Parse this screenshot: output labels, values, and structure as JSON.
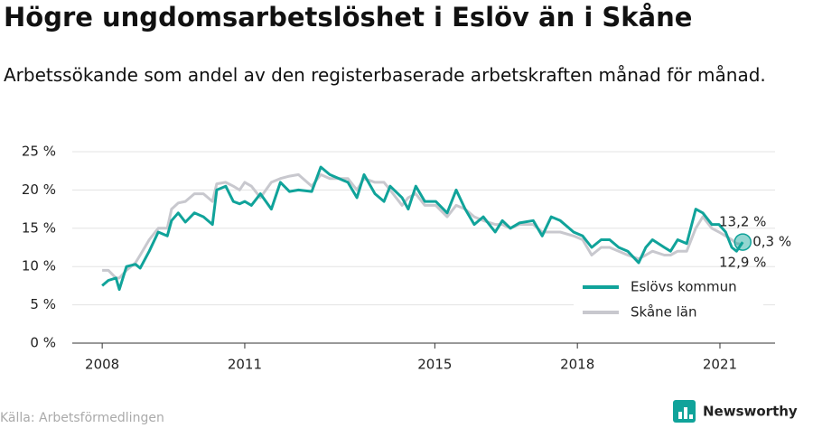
{
  "chart_data": {
    "type": "line",
    "title": "Högre ungdomsarbetslöshet i Eslöv än i Skåne",
    "subtitle": "Arbetssökande som andel av den registerbaserade arbetskraften månad för månad.",
    "source": "Källa: Arbetsförmedlingen",
    "brand": "Newsworthy",
    "x": [
      2008.0,
      2008.13,
      2008.29,
      2008.36,
      2008.51,
      2008.7,
      2008.8,
      2008.99,
      2009.18,
      2009.37,
      2009.46,
      2009.6,
      2009.75,
      2009.94,
      2010.13,
      2010.32,
      2010.41,
      2010.6,
      2010.76,
      2010.89,
      2011.0,
      2011.14,
      2011.33,
      2011.56,
      2011.75,
      2011.94,
      2012.13,
      2012.41,
      2012.6,
      2012.79,
      2013.17,
      2013.36,
      2013.51,
      2013.74,
      2013.93,
      2014.06,
      2014.31,
      2014.44,
      2014.6,
      2014.79,
      2015.02,
      2015.26,
      2015.45,
      2015.64,
      2015.83,
      2016.02,
      2016.27,
      2016.42,
      2016.59,
      2016.78,
      2017.07,
      2017.26,
      2017.45,
      2017.64,
      2017.92,
      2018.11,
      2018.3,
      2018.5,
      2018.68,
      2018.87,
      2019.06,
      2019.29,
      2019.44,
      2019.58,
      2019.83,
      2019.96,
      2020.11,
      2020.3,
      2020.49,
      2020.64,
      2020.83,
      2020.98,
      2021.12,
      2021.25,
      2021.35,
      2021.48
    ],
    "series": [
      {
        "name": "Eslövs kommun",
        "color": "#10a39a",
        "values": [
          7.5,
          8.2,
          8.5,
          7.0,
          10.0,
          10.3,
          9.8,
          12.0,
          14.5,
          14.0,
          16.0,
          17.0,
          15.8,
          17.0,
          16.5,
          15.5,
          20.0,
          20.5,
          18.5,
          18.2,
          18.5,
          18.0,
          19.5,
          17.5,
          21.0,
          19.8,
          20.0,
          19.8,
          23.0,
          22.0,
          21.0,
          19.0,
          22.0,
          19.5,
          18.5,
          20.5,
          19.0,
          17.5,
          20.5,
          18.5,
          18.5,
          17.0,
          20.0,
          17.5,
          15.5,
          16.5,
          14.5,
          16.0,
          15.0,
          15.7,
          16.0,
          14.0,
          16.5,
          16.0,
          14.5,
          14.0,
          12.5,
          13.5,
          13.5,
          12.5,
          12.0,
          10.5,
          12.5,
          13.5,
          12.5,
          12.0,
          13.5,
          13.0,
          17.5,
          17.0,
          15.5,
          15.5,
          14.5,
          12.5,
          12.0,
          13.2
        ]
      },
      {
        "name": "Skåne län",
        "color": "#c8c8ce",
        "values": [
          9.5,
          9.5,
          8.5,
          8.5,
          9.5,
          10.5,
          11.5,
          13.5,
          15.0,
          15.0,
          17.5,
          18.3,
          18.5,
          19.5,
          19.5,
          18.5,
          20.8,
          21.0,
          20.5,
          20.0,
          21.0,
          20.5,
          19.0,
          21.0,
          21.5,
          21.8,
          22.0,
          20.5,
          22.0,
          21.5,
          21.5,
          20.0,
          21.5,
          21.0,
          21.0,
          20.0,
          18.0,
          19.0,
          19.5,
          18.0,
          18.0,
          16.5,
          18.0,
          17.5,
          16.5,
          16.0,
          15.5,
          15.5,
          15.0,
          15.5,
          15.5,
          14.5,
          14.5,
          14.5,
          14.0,
          13.5,
          11.5,
          12.5,
          12.5,
          12.0,
          11.5,
          11.0,
          11.5,
          12.0,
          11.5,
          11.5,
          12.0,
          12.0,
          15.0,
          16.5,
          15.0,
          14.5,
          14.0,
          13.5,
          13.0,
          12.9
        ]
      }
    ],
    "annotations": [
      "13,2 %",
      "0,3 %",
      "12,9 %"
    ],
    "xlim": [
      2007.37,
      2022.16
    ],
    "xticks": [
      2008,
      2011,
      2015,
      2018,
      2021
    ],
    "ylim": [
      0,
      25
    ],
    "yticks": [
      {
        "value": 0,
        "label": "0 %"
      },
      {
        "value": 5,
        "label": "5 %"
      },
      {
        "value": 10,
        "label": "10 %"
      },
      {
        "value": 15,
        "label": "15 %"
      },
      {
        "value": 20,
        "label": "20 %"
      },
      {
        "value": 25,
        "label": "25 %"
      }
    ],
    "grid": true,
    "legend": "lower right"
  }
}
